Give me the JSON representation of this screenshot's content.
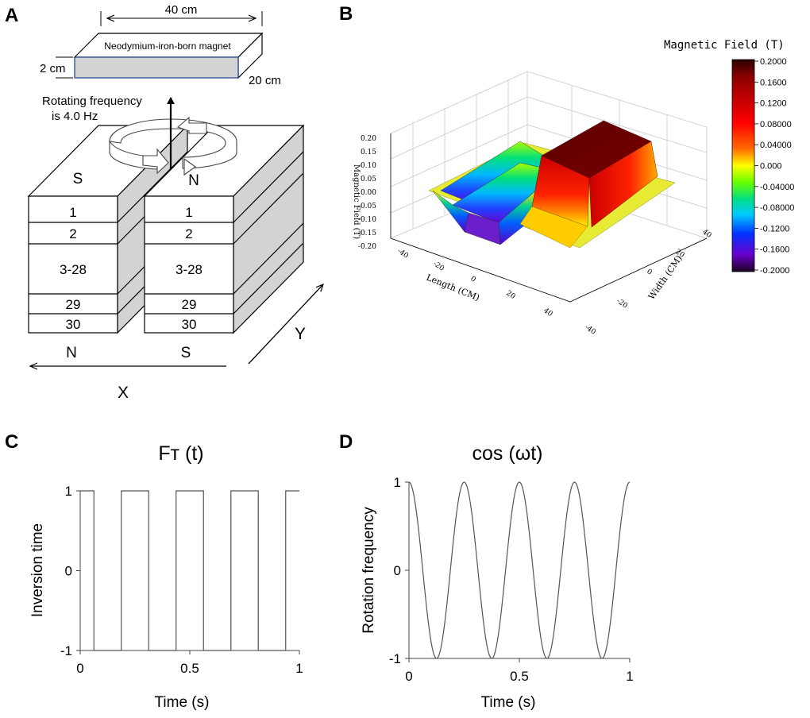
{
  "panel_a": {
    "letter": "A",
    "magnet_label": "Neodymium-iron-born magnet",
    "dim_length": "40 cm",
    "dim_height": "2 cm",
    "dim_width": "20 cm",
    "rotation_line1": "Rotating frequency",
    "rotation_line2": "is 4.0 Hz",
    "left_stack": {
      "top_pole": "S",
      "bottom_pole": "N",
      "layers": [
        "1",
        "2",
        "3-28",
        "29",
        "30"
      ]
    },
    "right_stack": {
      "top_pole": "N",
      "bottom_pole": "S",
      "layers": [
        "1",
        "2",
        "3-28",
        "29",
        "30"
      ]
    },
    "axis_x": "X",
    "axis_y": "Y"
  },
  "panel_b": {
    "letter": "B",
    "colorbar_title": "Magnetic Field  (T)",
    "colorbar_ticks": [
      "0.2000",
      "0.1600",
      "0.1200",
      "0.08000",
      "0.04000",
      "0.000",
      "-0.04000",
      "-0.08000",
      "-0.1200",
      "-0.1600",
      "-0.2000"
    ],
    "colors": {
      "stops": [
        "#3a0000",
        "#8b0000",
        "#ff0000",
        "#ff6600",
        "#ffff00",
        "#66ff00",
        "#00dd66",
        "#00ccff",
        "#0033ff",
        "#6600cc",
        "#1a001a"
      ]
    },
    "z_axis_label": "Magnetic Field (T)",
    "z_ticks": [
      "0.20",
      "0.15",
      "0.10",
      "0.05",
      "0.00",
      "-0.05",
      "-0.10",
      "-0.15",
      "-0.20"
    ],
    "length_label": "Length (CM)",
    "length_ticks": [
      "-40",
      "-20",
      "0",
      "20",
      "40"
    ],
    "width_label": "Width (CM)",
    "width_ticks": [
      "40",
      "20",
      "0",
      "-20",
      "-40"
    ]
  },
  "chart_data": [
    {
      "type": "line",
      "panel": "C",
      "title": "Fт (t)",
      "xlabel": "Time (s)",
      "ylabel": "Inversion time",
      "xlim": [
        0,
        1
      ],
      "ylim": [
        -1,
        1
      ],
      "xticks": [
        "0",
        "0.5",
        "1"
      ],
      "yticks": [
        "1",
        "0",
        "-1"
      ],
      "series": [
        {
          "name": "square wave",
          "x": [
            0.0,
            0.0625,
            0.0625,
            0.1875,
            0.1875,
            0.3125,
            0.3125,
            0.4375,
            0.4375,
            0.5625,
            0.5625,
            0.6875,
            0.6875,
            0.8125,
            0.8125,
            0.9375,
            0.9375,
            1.0
          ],
          "y": [
            1,
            1,
            -1,
            -1,
            1,
            1,
            -1,
            -1,
            1,
            1,
            -1,
            -1,
            1,
            1,
            -1,
            -1,
            1,
            1
          ]
        }
      ]
    },
    {
      "type": "line",
      "panel": "D",
      "title": "cos (ωt)",
      "xlabel": "Time (s)",
      "ylabel": "Rotation frequency",
      "xlim": [
        0,
        1
      ],
      "ylim": [
        -1,
        1
      ],
      "xticks": [
        "0",
        "0.5",
        "1"
      ],
      "yticks": [
        "1",
        "0",
        "-1"
      ],
      "series": [
        {
          "name": "cos(2π·4t)",
          "function": "cos",
          "frequency_hz": 4,
          "amplitude": 1
        }
      ]
    }
  ]
}
